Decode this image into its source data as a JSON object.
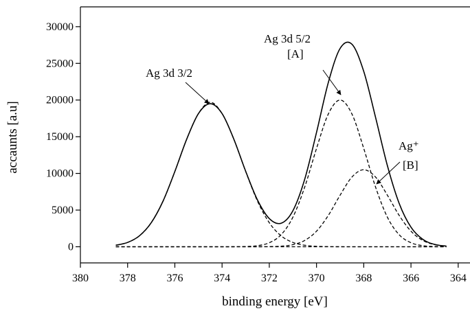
{
  "chart_data": {
    "type": "line",
    "xlabel": "binding energy [eV]",
    "ylabel": "accaunts [a.u]",
    "xlim": [
      380,
      363.5
    ],
    "ylim": [
      -2200,
      32700
    ],
    "xticks": [
      380,
      378,
      376,
      374,
      372,
      370,
      368,
      366,
      364
    ],
    "yticks": [
      0,
      5000,
      10000,
      15000,
      20000,
      25000,
      30000
    ],
    "annotations": [
      "Ag 3d 3/2",
      "Ag 3d 5/2",
      "[A]",
      "Ag⁺",
      "[B]"
    ],
    "x": [
      378.5,
      378,
      377.5,
      377,
      376.5,
      376,
      375.5,
      375,
      374.5,
      374,
      373.5,
      373,
      372.5,
      372,
      371.5,
      371,
      370.5,
      370,
      369.5,
      369,
      368.5,
      368,
      367.5,
      367,
      366.5,
      366,
      365.5,
      365,
      364.5
    ],
    "series": [
      {
        "color": "#000000",
        "dash": false,
        "values": [
          203,
          589,
          1490,
          3276,
          6221,
          10257,
          14645,
          18155,
          19500,
          18155,
          14651,
          10291,
          6372,
          3840,
          3208,
          4916,
          9204,
          15581,
          22390,
          27039,
          27604,
          23900,
          17643,
          11075,
          5914,
          2667,
          1009,
          321,
          84
        ]
      },
      {
        "color": "#000000",
        "dash": true,
        "values": [
          203,
          589,
          1490,
          3276,
          6221,
          10257,
          14645,
          18155,
          19700,
          18155,
          14645,
          10257,
          6221,
          3276,
          1490,
          589,
          203,
          60,
          16,
          4,
          1,
          0,
          0,
          0,
          0,
          0,
          0,
          0,
          0
        ]
      },
      {
        "color": "#000000",
        "dash": true,
        "values": [
          0,
          0,
          0,
          0,
          0,
          0,
          0,
          0,
          0,
          0,
          6,
          34,
          148,
          546,
          1640,
          4040,
          8140,
          13400,
          18100,
          20000,
          18100,
          13400,
          8140,
          4040,
          1640,
          546,
          148,
          34,
          6
        ]
      },
      {
        "color": "#000000",
        "dash": true,
        "values": [
          0,
          0,
          0,
          0,
          0,
          0,
          0,
          0,
          0,
          0,
          0,
          0,
          3,
          18,
          78,
          287,
          861,
          2121,
          4274,
          7035,
          9503,
          10500,
          9503,
          7035,
          4274,
          2121,
          861,
          287,
          78
        ]
      },
      {
        "color": "#000000",
        "dash": true,
        "values": [
          0,
          0,
          0,
          0,
          0,
          0,
          0,
          0,
          0,
          0,
          0,
          0,
          0,
          0,
          0,
          0,
          0,
          0,
          0,
          0,
          0,
          0,
          0,
          0,
          0,
          0,
          0,
          0,
          0
        ]
      }
    ]
  }
}
